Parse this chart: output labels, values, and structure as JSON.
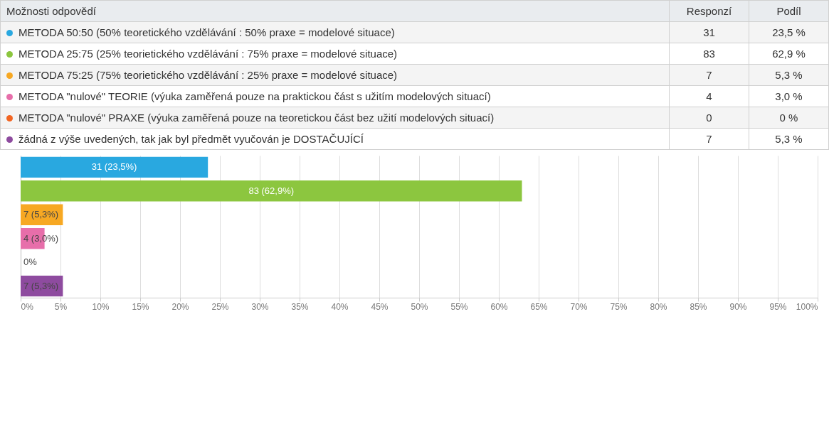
{
  "chart_data": [
    {
      "type": "other",
      "annotations": [
        "Možnosti odpovědí",
        "Responzí",
        "Podíl",
        "METODA 50:50 (50% teoretického vzdělávání : 50% praxe = modelové situace)",
        "31",
        "23,5 %",
        "METODA 25:75 (25% teorietického vzdělávání : 75% praxe = modelové situace)",
        "83",
        "62,9 %",
        "METODA 75:25 (75% teorietického vzdělávání : 25% praxe = modelové situace)",
        "7",
        "5,3 %",
        "METODA \"nulové\" TEORIE (výuka zaměřená pouze na praktickou část s užitím modelových situací)",
        "4",
        "3,0 %",
        "METODA \"nulové\" PRAXE (výuka zaměřená pouze na teoretickou část bez užití modelových situací)",
        "0",
        "0 %",
        "žádná z výše uvedených, tak jak byl předmět vyučován je DOSTAČUJÍCÍ",
        "7",
        "5,3 %"
      ]
    },
    {
      "type": "bar",
      "orientation": "horizontal",
      "tick_labels": "x",
      "grid": "x",
      "categories": [
        null,
        null,
        null,
        null,
        null,
        null
      ],
      "values": [
        23.5,
        62.9,
        5.3,
        3.0,
        0,
        5.3
      ],
      "colors": [
        "#29a8e0",
        "#8cc63f",
        "#f7a823",
        "#e76eaa",
        "#f26522",
        "#8e4b9f"
      ],
      "value_labels": [
        "31 (23,5%)",
        "83 (62,9%)",
        "7 (5,3%)",
        "4 (3,0%)",
        "0%",
        "7 (5,3%)"
      ],
      "xlim": [
        0,
        100
      ],
      "xticks": [
        {
          "value": 0,
          "label": "0%"
        },
        {
          "value": 5,
          "label": "5%"
        },
        {
          "value": 10,
          "label": "10%"
        },
        {
          "value": 15,
          "label": "15%"
        },
        {
          "value": 20,
          "label": "20%"
        },
        {
          "value": 25,
          "label": "25%"
        },
        {
          "value": 30,
          "label": "30%"
        },
        {
          "value": 35,
          "label": "35%"
        },
        {
          "value": 40,
          "label": "40%"
        },
        {
          "value": 45,
          "label": "45%"
        },
        {
          "value": 50,
          "label": "50%"
        },
        {
          "value": 55,
          "label": "55%"
        },
        {
          "value": 60,
          "label": "60%"
        },
        {
          "value": 65,
          "label": "65%"
        },
        {
          "value": 70,
          "label": "70%"
        },
        {
          "value": 75,
          "label": "75%"
        },
        {
          "value": 80,
          "label": "80%"
        },
        {
          "value": 85,
          "label": "85%"
        },
        {
          "value": 90,
          "label": "90%"
        },
        {
          "value": 95,
          "label": "95%"
        },
        {
          "value": 100,
          "label": "100%"
        }
      ]
    }
  ]
}
